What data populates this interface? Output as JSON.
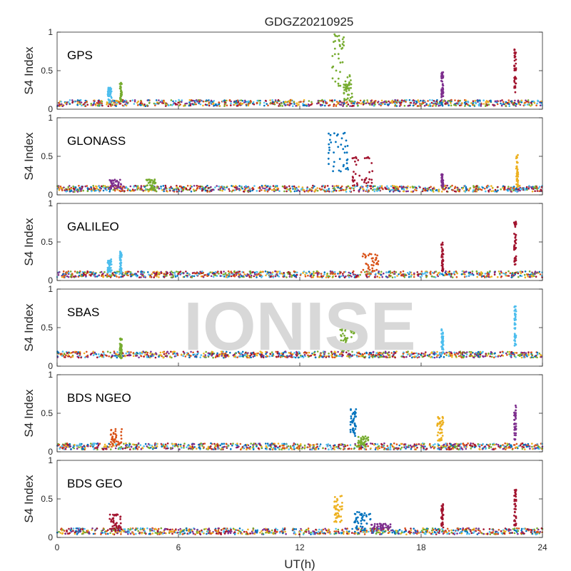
{
  "chart_data": {
    "type": "scatter",
    "title": "GDGZ20210925",
    "xlabel": "UT(h)",
    "ylabel": "S4 Index",
    "xlim": [
      0,
      24
    ],
    "ylim": [
      0,
      1
    ],
    "xticks": [
      "0",
      "6",
      "12",
      "18",
      "24"
    ],
    "yticks": [
      "0",
      "0.5",
      "1"
    ],
    "watermark": "IONISE",
    "series_colors": [
      "#0072BD",
      "#D95319",
      "#EDB120",
      "#7E2F8E",
      "#77AC30",
      "#4DBEEE",
      "#A2142F"
    ],
    "panels": [
      {
        "name": "GPS",
        "baseline": 0.08,
        "events": [
          {
            "x": [
              13.6,
              14.2
            ],
            "y": [
              0.2,
              0.98
            ],
            "color": 4
          },
          {
            "x": [
              14.2,
              14.6
            ],
            "y": [
              0.1,
              0.45
            ],
            "color": 4
          },
          {
            "x": [
              2.5,
              2.7
            ],
            "y": [
              0.1,
              0.28
            ],
            "color": 5
          },
          {
            "x": [
              3.1,
              3.2
            ],
            "y": [
              0.1,
              0.35
            ],
            "color": 4
          },
          {
            "x": [
              19.0,
              19.1
            ],
            "y": [
              0.15,
              0.48
            ],
            "color": 3
          },
          {
            "x": [
              22.6,
              22.7
            ],
            "y": [
              0.2,
              0.8
            ],
            "color": 6
          }
        ]
      },
      {
        "name": "GLONASS",
        "baseline": 0.08,
        "events": [
          {
            "x": [
              13.4,
              14.4
            ],
            "y": [
              0.3,
              0.85
            ],
            "color": 0
          },
          {
            "x": [
              14.6,
              15.6
            ],
            "y": [
              0.1,
              0.5
            ],
            "color": 6
          },
          {
            "x": [
              2.6,
              3.2
            ],
            "y": [
              0.08,
              0.2
            ],
            "color": 3
          },
          {
            "x": [
              4.4,
              4.9
            ],
            "y": [
              0.06,
              0.2
            ],
            "color": 4
          },
          {
            "x": [
              19.0,
              19.1
            ],
            "y": [
              0.1,
              0.27
            ],
            "color": 3
          },
          {
            "x": [
              22.7,
              22.8
            ],
            "y": [
              0.1,
              0.52
            ],
            "color": 2
          }
        ]
      },
      {
        "name": "GALILEO",
        "baseline": 0.08,
        "events": [
          {
            "x": [
              2.5,
              2.7
            ],
            "y": [
              0.1,
              0.28
            ],
            "color": 5
          },
          {
            "x": [
              3.1,
              3.2
            ],
            "y": [
              0.1,
              0.38
            ],
            "color": 5
          },
          {
            "x": [
              15.1,
              15.9
            ],
            "y": [
              0.08,
              0.35
            ],
            "color": 1
          },
          {
            "x": [
              19.0,
              19.1
            ],
            "y": [
              0.1,
              0.5
            ],
            "color": 6
          },
          {
            "x": [
              22.6,
              22.7
            ],
            "y": [
              0.2,
              0.8
            ],
            "color": 6
          }
        ]
      },
      {
        "name": "SBAS",
        "baseline": 0.15,
        "events": [
          {
            "x": [
              14.0,
              14.7
            ],
            "y": [
              0.2,
              0.48
            ],
            "color": 4
          },
          {
            "x": [
              3.1,
              3.2
            ],
            "y": [
              0.1,
              0.36
            ],
            "color": 4
          },
          {
            "x": [
              19.0,
              19.1
            ],
            "y": [
              0.15,
              0.48
            ],
            "color": 5
          },
          {
            "x": [
              22.6,
              22.7
            ],
            "y": [
              0.25,
              0.78
            ],
            "color": 5
          }
        ]
      },
      {
        "name": "BDS NGEO",
        "baseline": 0.07,
        "events": [
          {
            "x": [
              14.5,
              14.8
            ],
            "y": [
              0.2,
              0.58
            ],
            "color": 0
          },
          {
            "x": [
              14.8,
              15.4
            ],
            "y": [
              0.06,
              0.2
            ],
            "color": 4
          },
          {
            "x": [
              2.6,
              3.2
            ],
            "y": [
              0.08,
              0.3
            ],
            "color": 1
          },
          {
            "x": [
              18.8,
              19.1
            ],
            "y": [
              0.1,
              0.46
            ],
            "color": 2
          },
          {
            "x": [
              22.6,
              22.7
            ],
            "y": [
              0.15,
              0.62
            ],
            "color": 3
          }
        ]
      },
      {
        "name": "BDS GEO",
        "baseline": 0.08,
        "events": [
          {
            "x": [
              13.7,
              14.1
            ],
            "y": [
              0.2,
              0.55
            ],
            "color": 2
          },
          {
            "x": [
              14.7,
              15.5
            ],
            "y": [
              0.1,
              0.33
            ],
            "color": 0
          },
          {
            "x": [
              15.5,
              16.5
            ],
            "y": [
              0.08,
              0.18
            ],
            "color": 3
          },
          {
            "x": [
              2.6,
              3.2
            ],
            "y": [
              0.08,
              0.3
            ],
            "color": 6
          },
          {
            "x": [
              19.0,
              19.1
            ],
            "y": [
              0.12,
              0.44
            ],
            "color": 6
          },
          {
            "x": [
              22.6,
              22.7
            ],
            "y": [
              0.15,
              0.62
            ],
            "color": 6
          }
        ]
      }
    ]
  }
}
